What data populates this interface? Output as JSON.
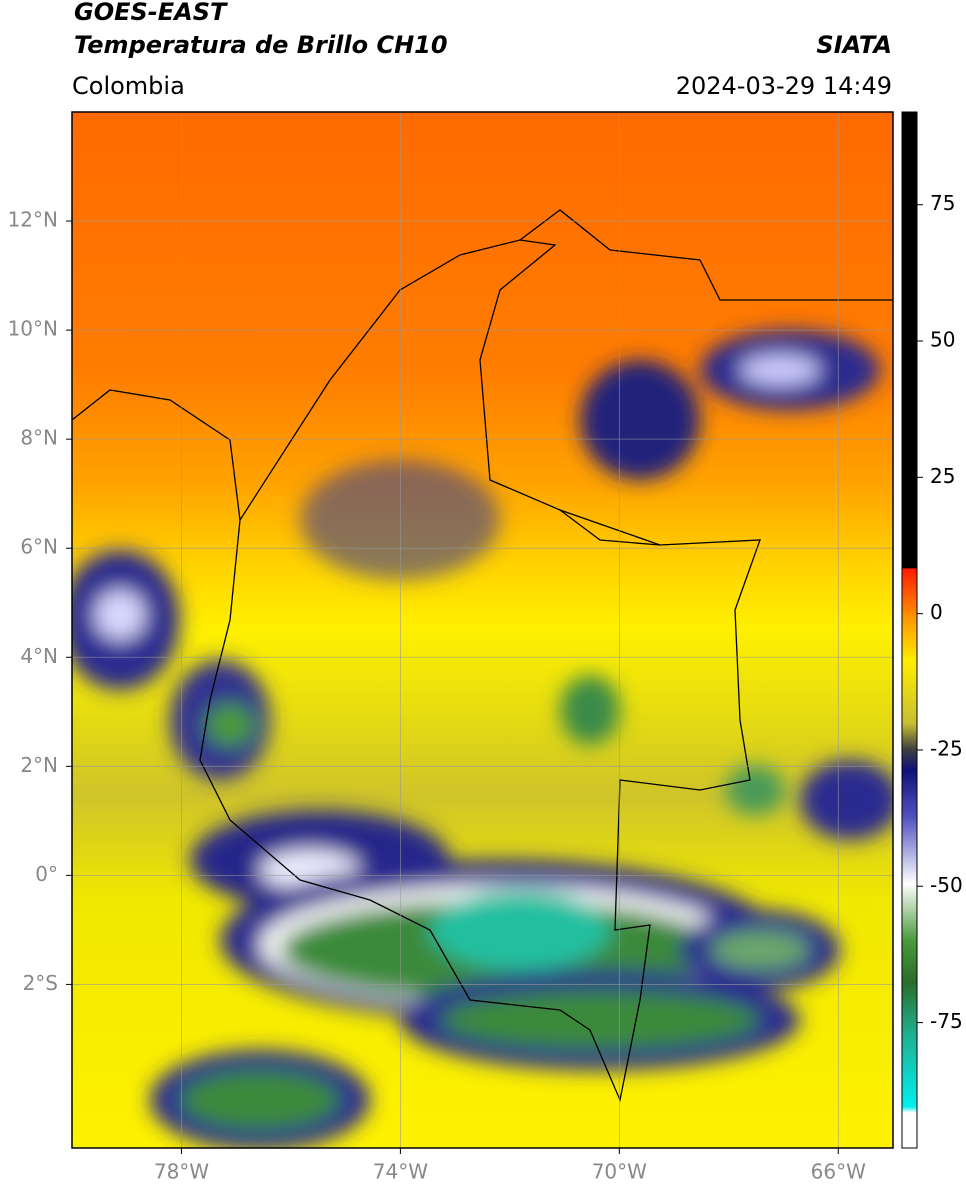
{
  "header": {
    "satellite": "GOES-EAST",
    "product": "Temperatura de Brillo CH10",
    "source": "SIATA",
    "region": "Colombia",
    "datetime": "2024-03-29 14:49"
  },
  "map": {
    "xlim": [
      -80,
      -65
    ],
    "ylim": [
      -5,
      14
    ],
    "xticks": [
      {
        "value": -78,
        "label": "78°W"
      },
      {
        "value": -74,
        "label": "74°W"
      },
      {
        "value": -70,
        "label": "70°W"
      },
      {
        "value": -66,
        "label": "66°W"
      }
    ],
    "yticks": [
      {
        "value": 12,
        "label": "12°N"
      },
      {
        "value": 10,
        "label": "10°N"
      },
      {
        "value": 8,
        "label": "8°N"
      },
      {
        "value": 6,
        "label": "6°N"
      },
      {
        "value": 4,
        "label": "4°N"
      },
      {
        "value": 2,
        "label": "2°N"
      },
      {
        "value": 0,
        "label": "0°"
      },
      {
        "value": -2,
        "label": "2°S"
      }
    ],
    "grid": true
  },
  "colorbar": {
    "lim": [
      -98,
      92
    ],
    "ticks": [
      75,
      50,
      25,
      0,
      -25,
      -50,
      -75
    ]
  }
}
